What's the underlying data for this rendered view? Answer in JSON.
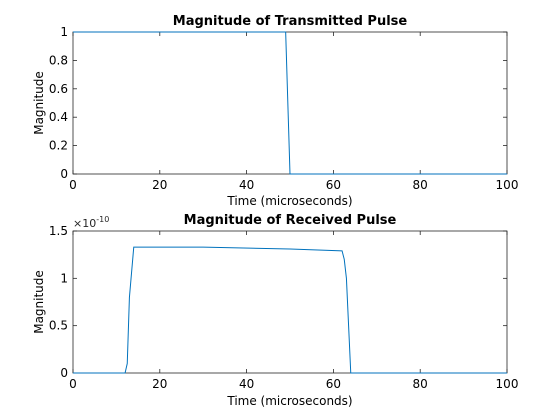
{
  "chart_data": [
    {
      "type": "line",
      "title": "Magnitude of Transmitted Pulse",
      "xlabel": "Time (microseconds)",
      "ylabel": "Magnitude",
      "xlim": [
        0,
        100
      ],
      "ylim": [
        0,
        1
      ],
      "xticks": [
        0,
        20,
        40,
        60,
        80,
        100
      ],
      "xtick_labels": [
        "0",
        "20",
        "40",
        "60",
        "80",
        "100"
      ],
      "yticks": [
        0,
        0.2,
        0.4,
        0.6,
        0.8,
        1
      ],
      "ytick_labels": [
        "0",
        "0.2",
        "0.4",
        "0.6",
        "0.8",
        "1"
      ],
      "exponent_label": "",
      "grid": false,
      "color": "#0072BD",
      "x": [
        0,
        49,
        50,
        100
      ],
      "y": [
        1,
        1,
        0,
        0
      ]
    },
    {
      "type": "line",
      "title": "Magnitude of Received Pulse",
      "xlabel": "Time (microseconds)",
      "ylabel": "Magnitude",
      "xlim": [
        0,
        100
      ],
      "ylim": [
        0,
        1.5
      ],
      "xticks": [
        0,
        20,
        40,
        60,
        80,
        100
      ],
      "xtick_labels": [
        "0",
        "20",
        "40",
        "60",
        "80",
        "100"
      ],
      "yticks": [
        0,
        0.5,
        1,
        1.5
      ],
      "ytick_labels": [
        "0",
        "0.5",
        "1",
        "1.5"
      ],
      "exponent_label": "×10",
      "exponent_power": "-10",
      "grid": false,
      "color": "#0072BD",
      "x": [
        0,
        12,
        12.5,
        13,
        14,
        30,
        50,
        62,
        62.5,
        63,
        63.5,
        64,
        100
      ],
      "y": [
        0,
        0,
        0.1,
        0.8,
        1.33,
        1.33,
        1.31,
        1.29,
        1.2,
        1.0,
        0.5,
        0,
        0
      ]
    }
  ]
}
